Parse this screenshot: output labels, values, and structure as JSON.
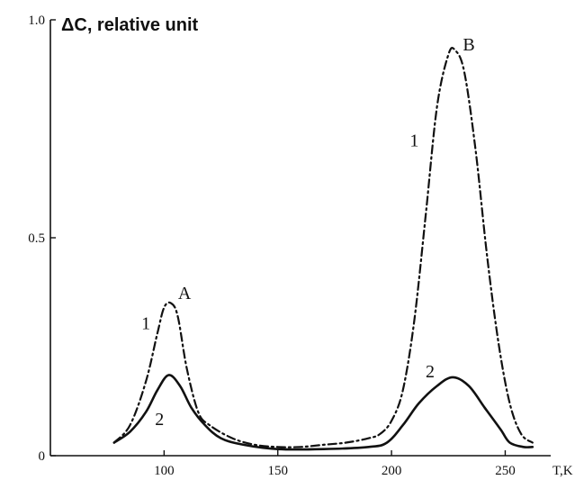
{
  "chart_data": {
    "type": "line",
    "title": "",
    "xlabel": "T,K",
    "ylabel": "ΔC, relative unit",
    "xlim": [
      50,
      270
    ],
    "ylim": [
      0,
      1.0
    ],
    "x_ticks": [
      100,
      150,
      200,
      250
    ],
    "x_tick_labels": [
      "100",
      "150",
      "200",
      "250"
    ],
    "y_ticks": [
      0,
      0.5,
      1.0
    ],
    "y_tick_labels": [
      "0",
      "0.5",
      "1.0"
    ],
    "grid": false,
    "series": [
      {
        "name": "1",
        "style": "dash-dot",
        "x": [
          78,
          85,
          92,
          97,
          100,
          103,
          106,
          110,
          115,
          120,
          130,
          140,
          150,
          160,
          170,
          180,
          190,
          195,
          200,
          205,
          210,
          215,
          220,
          225,
          228,
          232,
          237,
          242,
          247,
          252,
          257,
          262
        ],
        "y": [
          0.03,
          0.07,
          0.17,
          0.28,
          0.34,
          0.35,
          0.32,
          0.2,
          0.1,
          0.07,
          0.04,
          0.025,
          0.02,
          0.02,
          0.025,
          0.03,
          0.04,
          0.05,
          0.08,
          0.15,
          0.31,
          0.55,
          0.8,
          0.92,
          0.93,
          0.88,
          0.7,
          0.46,
          0.26,
          0.12,
          0.05,
          0.03
        ]
      },
      {
        "name": "2",
        "style": "solid",
        "x": [
          78,
          85,
          92,
          97,
          102,
          107,
          112,
          118,
          125,
          135,
          150,
          170,
          190,
          198,
          205,
          212,
          220,
          227,
          234,
          241,
          248,
          252,
          258,
          262
        ],
        "y": [
          0.03,
          0.055,
          0.1,
          0.15,
          0.185,
          0.16,
          0.11,
          0.07,
          0.04,
          0.025,
          0.015,
          0.015,
          0.02,
          0.03,
          0.07,
          0.12,
          0.16,
          0.18,
          0.16,
          0.11,
          0.06,
          0.03,
          0.02,
          0.02
        ]
      }
    ],
    "annotations": [
      {
        "text": "A",
        "x": 109,
        "y": 0.36
      },
      {
        "text": "1",
        "x": 92,
        "y": 0.29
      },
      {
        "text": "2",
        "x": 98,
        "y": 0.07
      },
      {
        "text": "B",
        "x": 234,
        "y": 0.93
      },
      {
        "text": "1",
        "x": 210,
        "y": 0.71
      },
      {
        "text": "2",
        "x": 217,
        "y": 0.18
      }
    ]
  }
}
